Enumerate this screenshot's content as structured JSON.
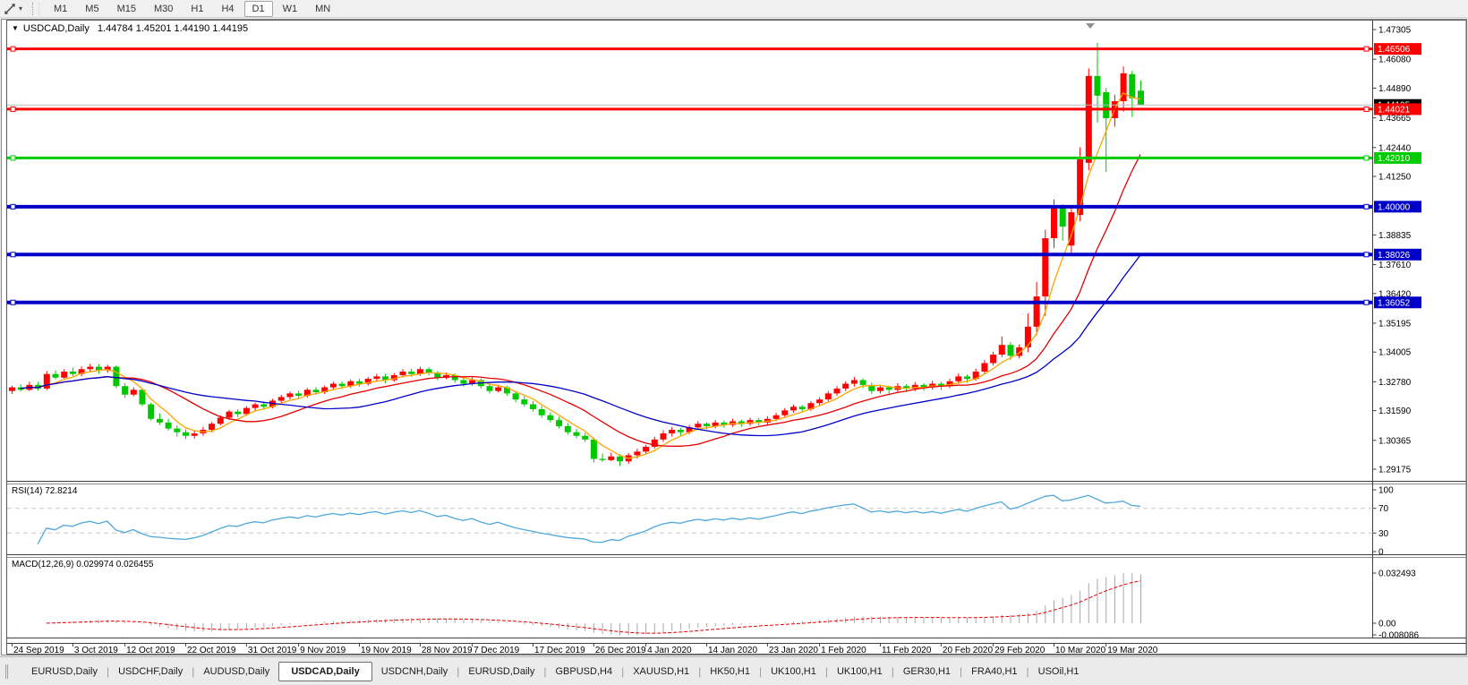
{
  "toolbar": {
    "timeframes": [
      "M1",
      "M5",
      "M15",
      "M30",
      "H1",
      "H4",
      "D1",
      "W1",
      "MN"
    ],
    "active_timeframe": "D1"
  },
  "chart": {
    "title_symbol": "USDCAD,Daily",
    "title_ohlc": "1.44784 1.45201 1.44190 1.44195",
    "up_color": "#FF0000",
    "down_color": "#00C800",
    "axis_ticks": [
      "1.47305",
      "1.46080",
      "1.44890",
      "1.43665",
      "1.42440",
      "1.41250",
      "1.38835",
      "1.37610",
      "1.36420",
      "1.35195",
      "1.34005",
      "1.32780",
      "1.31590",
      "1.30365",
      "1.29175"
    ],
    "hlines": [
      {
        "price": 1.46506,
        "label": "1.46506",
        "color": "#FF0000",
        "width": 3
      },
      {
        "price": 1.44021,
        "label": "1.44021",
        "color": "#FF0000",
        "width": 3
      },
      {
        "price": 1.4201,
        "label": "1.42010",
        "color": "#00CC00",
        "width": 3
      },
      {
        "price": 1.4,
        "label": "1.40000",
        "color": "#0000C8",
        "width": 4
      },
      {
        "price": 1.38026,
        "label": "1.38026",
        "color": "#0000C8",
        "width": 4
      },
      {
        "price": 1.36052,
        "label": "1.36052",
        "color": "#0000C8",
        "width": 4
      }
    ],
    "current_price": {
      "price": 1.44195,
      "label": "1.44195",
      "line_color": "#BBBBBB",
      "label_bg": "#000000"
    },
    "mas": [
      {
        "period": 5,
        "color": "#FFA500"
      },
      {
        "period": 13,
        "color": "#E60000"
      },
      {
        "period": 25,
        "color": "#0000C8"
      }
    ],
    "date_labels": [
      [
        0,
        "24 Sep 2019"
      ],
      [
        7,
        "3 Oct 2019"
      ],
      [
        13,
        "12 Oct 2019"
      ],
      [
        20,
        "22 Oct 2019"
      ],
      [
        27,
        "31 Oct 2019"
      ],
      [
        33,
        "9 Nov 2019"
      ],
      [
        40,
        "19 Nov 2019"
      ],
      [
        47,
        "28 Nov 2019"
      ],
      [
        53,
        "7 Dec 2019"
      ],
      [
        60,
        "17 Dec 2019"
      ],
      [
        67,
        "26 Dec 2019"
      ],
      [
        73,
        "4 Jan 2020"
      ],
      [
        80,
        "14 Jan 2020"
      ],
      [
        87,
        "23 Jan 2020"
      ],
      [
        93,
        "1 Feb 2020"
      ],
      [
        100,
        "11 Feb 2020"
      ],
      [
        107,
        "20 Feb 2020"
      ],
      [
        113,
        "29 Feb 2020"
      ],
      [
        120,
        "10 Mar 2020"
      ],
      [
        126,
        "19 Mar 2020"
      ]
    ],
    "candles": [
      [
        1.324,
        1.3262,
        1.3228,
        1.3255
      ],
      [
        1.3255,
        1.3268,
        1.3238,
        1.3245
      ],
      [
        1.3245,
        1.3278,
        1.324,
        1.3265
      ],
      [
        1.3265,
        1.3277,
        1.3242,
        1.325
      ],
      [
        1.325,
        1.3322,
        1.3244,
        1.331
      ],
      [
        1.331,
        1.3325,
        1.3288,
        1.3295
      ],
      [
        1.3295,
        1.333,
        1.329,
        1.332
      ],
      [
        1.332,
        1.3336,
        1.3302,
        1.331
      ],
      [
        1.331,
        1.3342,
        1.33,
        1.333
      ],
      [
        1.333,
        1.3352,
        1.332,
        1.334
      ],
      [
        1.334,
        1.335,
        1.3312,
        1.3325
      ],
      [
        1.3325,
        1.3348,
        1.3315,
        1.334
      ],
      [
        1.334,
        1.3346,
        1.3252,
        1.326
      ],
      [
        1.326,
        1.3272,
        1.3212,
        1.3225
      ],
      [
        1.3225,
        1.3255,
        1.3218,
        1.3245
      ],
      [
        1.3245,
        1.325,
        1.3178,
        1.3185
      ],
      [
        1.3185,
        1.3192,
        1.3118,
        1.3125
      ],
      [
        1.3125,
        1.3148,
        1.31,
        1.311
      ],
      [
        1.311,
        1.3125,
        1.3077,
        1.3085
      ],
      [
        1.3085,
        1.3098,
        1.3052,
        1.307
      ],
      [
        1.307,
        1.3082,
        1.3042,
        1.3055
      ],
      [
        1.3055,
        1.3078,
        1.3044,
        1.3065
      ],
      [
        1.3065,
        1.3092,
        1.3055,
        1.308
      ],
      [
        1.308,
        1.3112,
        1.307,
        1.3105
      ],
      [
        1.3105,
        1.314,
        1.3098,
        1.313
      ],
      [
        1.313,
        1.3162,
        1.312,
        1.3155
      ],
      [
        1.3155,
        1.3165,
        1.3132,
        1.3145
      ],
      [
        1.3145,
        1.3178,
        1.3138,
        1.317
      ],
      [
        1.317,
        1.3192,
        1.3158,
        1.3185
      ],
      [
        1.3185,
        1.3196,
        1.3162,
        1.3175
      ],
      [
        1.3175,
        1.3208,
        1.3168,
        1.32
      ],
      [
        1.32,
        1.3224,
        1.319,
        1.3215
      ],
      [
        1.3215,
        1.3238,
        1.3205,
        1.323
      ],
      [
        1.323,
        1.3242,
        1.3208,
        1.322
      ],
      [
        1.322,
        1.3252,
        1.3212,
        1.3245
      ],
      [
        1.3245,
        1.3256,
        1.3224,
        1.3235
      ],
      [
        1.3235,
        1.3262,
        1.3228,
        1.3255
      ],
      [
        1.3255,
        1.3278,
        1.3246,
        1.327
      ],
      [
        1.327,
        1.328,
        1.3248,
        1.326
      ],
      [
        1.326,
        1.3288,
        1.3252,
        1.328
      ],
      [
        1.328,
        1.329,
        1.3258,
        1.327
      ],
      [
        1.327,
        1.3298,
        1.3262,
        1.329
      ],
      [
        1.329,
        1.331,
        1.328,
        1.33
      ],
      [
        1.33,
        1.3312,
        1.3272,
        1.3285
      ],
      [
        1.3285,
        1.3314,
        1.3278,
        1.3305
      ],
      [
        1.3305,
        1.333,
        1.3296,
        1.332
      ],
      [
        1.332,
        1.3332,
        1.3298,
        1.331
      ],
      [
        1.331,
        1.334,
        1.3302,
        1.333
      ],
      [
        1.333,
        1.3338,
        1.3304,
        1.3315
      ],
      [
        1.3315,
        1.3322,
        1.3284,
        1.3295
      ],
      [
        1.3295,
        1.3316,
        1.3288,
        1.3305
      ],
      [
        1.3305,
        1.3312,
        1.3274,
        1.3285
      ],
      [
        1.3285,
        1.3295,
        1.3258,
        1.327
      ],
      [
        1.327,
        1.3296,
        1.3262,
        1.3285
      ],
      [
        1.3285,
        1.3292,
        1.325,
        1.326
      ],
      [
        1.326,
        1.3272,
        1.323,
        1.324
      ],
      [
        1.324,
        1.3266,
        1.3234,
        1.3255
      ],
      [
        1.3255,
        1.3262,
        1.322,
        1.323
      ],
      [
        1.323,
        1.324,
        1.3194,
        1.3205
      ],
      [
        1.3205,
        1.3218,
        1.3175,
        1.3185
      ],
      [
        1.3185,
        1.3198,
        1.3155,
        1.3165
      ],
      [
        1.3165,
        1.3178,
        1.313,
        1.314
      ],
      [
        1.314,
        1.3152,
        1.311,
        1.312
      ],
      [
        1.312,
        1.3134,
        1.3085,
        1.3095
      ],
      [
        1.3095,
        1.3108,
        1.306,
        1.307
      ],
      [
        1.307,
        1.3084,
        1.3045,
        1.3055
      ],
      [
        1.3055,
        1.3068,
        1.303,
        1.304
      ],
      [
        1.304,
        1.3048,
        1.2945,
        1.296
      ],
      [
        1.296,
        1.2982,
        1.2948,
        1.2955
      ],
      [
        1.2955,
        1.2986,
        1.295,
        1.297
      ],
      [
        1.297,
        1.298,
        1.293,
        1.295
      ],
      [
        1.295,
        1.2984,
        1.294,
        1.2975
      ],
      [
        1.2975,
        1.3002,
        1.2962,
        1.299
      ],
      [
        1.299,
        1.3018,
        1.298,
        1.301
      ],
      [
        1.301,
        1.3052,
        1.3002,
        1.304
      ],
      [
        1.304,
        1.3078,
        1.303,
        1.3065
      ],
      [
        1.3065,
        1.3092,
        1.3052,
        1.308
      ],
      [
        1.308,
        1.3088,
        1.3056,
        1.307
      ],
      [
        1.307,
        1.31,
        1.3062,
        1.309
      ],
      [
        1.309,
        1.3116,
        1.308,
        1.3105
      ],
      [
        1.3105,
        1.3112,
        1.3082,
        1.3095
      ],
      [
        1.3095,
        1.312,
        1.3086,
        1.311
      ],
      [
        1.311,
        1.3118,
        1.3088,
        1.31
      ],
      [
        1.31,
        1.3126,
        1.3092,
        1.3115
      ],
      [
        1.3115,
        1.3122,
        1.3092,
        1.3105
      ],
      [
        1.3105,
        1.313,
        1.3096,
        1.312
      ],
      [
        1.312,
        1.3128,
        1.3098,
        1.311
      ],
      [
        1.311,
        1.3136,
        1.3102,
        1.3125
      ],
      [
        1.3125,
        1.315,
        1.3116,
        1.314
      ],
      [
        1.314,
        1.317,
        1.3132,
        1.316
      ],
      [
        1.316,
        1.3184,
        1.315,
        1.3175
      ],
      [
        1.3175,
        1.3182,
        1.3152,
        1.3165
      ],
      [
        1.3165,
        1.3198,
        1.3158,
        1.319
      ],
      [
        1.319,
        1.3214,
        1.318,
        1.3205
      ],
      [
        1.3205,
        1.324,
        1.3196,
        1.323
      ],
      [
        1.323,
        1.326,
        1.322,
        1.325
      ],
      [
        1.325,
        1.328,
        1.324,
        1.327
      ],
      [
        1.327,
        1.3298,
        1.3258,
        1.3285
      ],
      [
        1.3285,
        1.3292,
        1.3252,
        1.3265
      ],
      [
        1.3265,
        1.3274,
        1.3228,
        1.324
      ],
      [
        1.324,
        1.3266,
        1.323,
        1.3255
      ],
      [
        1.3255,
        1.3262,
        1.323,
        1.3245
      ],
      [
        1.3245,
        1.3272,
        1.3236,
        1.326
      ],
      [
        1.326,
        1.3268,
        1.3236,
        1.325
      ],
      [
        1.325,
        1.3276,
        1.324,
        1.3265
      ],
      [
        1.3265,
        1.3272,
        1.324,
        1.3255
      ],
      [
        1.3255,
        1.3282,
        1.3246,
        1.327
      ],
      [
        1.327,
        1.3278,
        1.3244,
        1.326
      ],
      [
        1.326,
        1.329,
        1.3252,
        1.328
      ],
      [
        1.328,
        1.3312,
        1.327,
        1.33
      ],
      [
        1.33,
        1.3308,
        1.3274,
        1.329
      ],
      [
        1.329,
        1.3332,
        1.3282,
        1.332
      ],
      [
        1.332,
        1.3368,
        1.331,
        1.3355
      ],
      [
        1.3355,
        1.3402,
        1.3345,
        1.339
      ],
      [
        1.339,
        1.3465,
        1.338,
        1.343
      ],
      [
        1.343,
        1.3442,
        1.3368,
        1.3385
      ],
      [
        1.3385,
        1.3432,
        1.3374,
        1.342
      ],
      [
        1.342,
        1.356,
        1.34,
        1.3505
      ],
      [
        1.3505,
        1.369,
        1.347,
        1.363
      ],
      [
        1.363,
        1.3905,
        1.355,
        1.387
      ],
      [
        1.387,
        1.403,
        1.383,
        1.3996
      ],
      [
        1.3996,
        1.401,
        1.386,
        1.3918
      ],
      [
        1.384,
        1.3998,
        1.381,
        1.3977
      ],
      [
        1.3966,
        1.4245,
        1.394,
        1.4195
      ],
      [
        1.4181,
        1.457,
        1.415,
        1.4539
      ],
      [
        1.4539,
        1.4676,
        1.4347,
        1.4458
      ],
      [
        1.4472,
        1.449,
        1.4143,
        1.4365
      ],
      [
        1.4365,
        1.4462,
        1.433,
        1.4435
      ],
      [
        1.4435,
        1.4578,
        1.4392,
        1.455
      ],
      [
        1.4546,
        1.456,
        1.437,
        1.4447
      ],
      [
        1.44784,
        1.45201,
        1.4419,
        1.44195
      ]
    ]
  },
  "rsi": {
    "label": "RSI(14) 72.8214",
    "line_color": "#4FA8DC",
    "level_labels": [
      "100",
      "70",
      "30",
      "0"
    ],
    "levels": [
      100,
      70,
      30,
      0
    ],
    "dashed_levels": [
      70,
      30
    ]
  },
  "macd": {
    "label": "MACD(12,26,9) 0.029974 0.026455",
    "axis_labels": [
      "0.032493",
      "0.00",
      "-0.008086"
    ],
    "hist_color": "#A8A8A8",
    "signal_color": "#E60000"
  },
  "tabs": {
    "items": [
      "EURUSD,Daily",
      "USDCHF,Daily",
      "AUDUSD,Daily",
      "USDCAD,Daily",
      "USDCNH,Daily",
      "EURUSD,Daily",
      "GBPUSD,H4",
      "XAUUSD,H1",
      "HK50,H1",
      "UK100,H1",
      "UK100,H1",
      "GER30,H1",
      "FRA40,H1",
      "USOil,H1"
    ],
    "active_index": 3
  }
}
